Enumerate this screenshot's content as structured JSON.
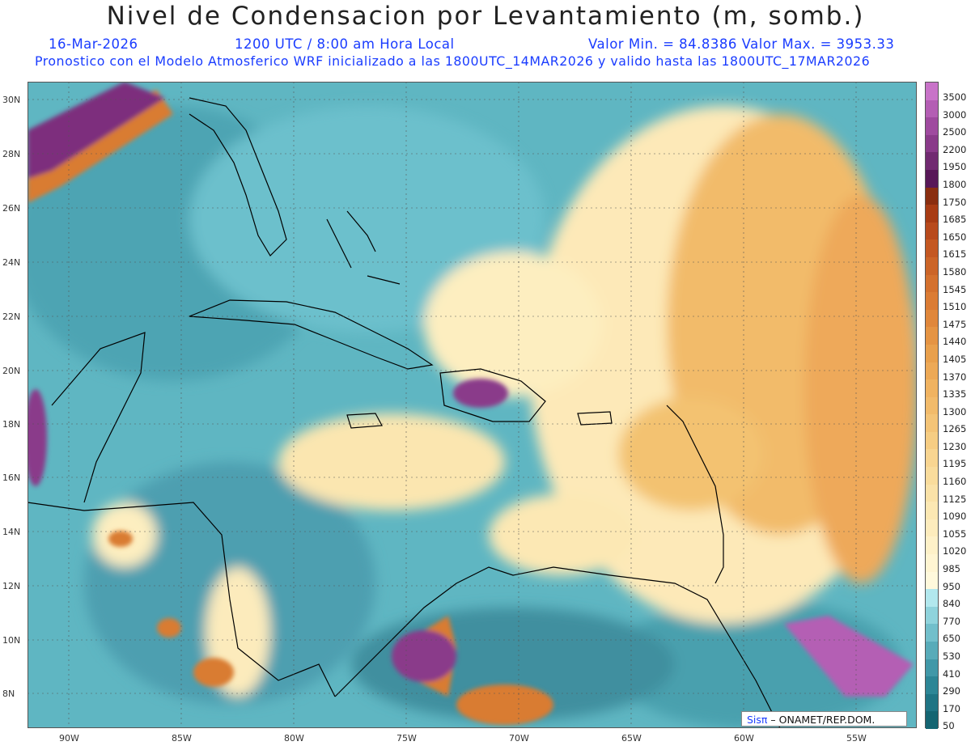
{
  "header": {
    "title": "Nivel de Condensacion por Levantamiento (m, somb.)",
    "date": "16-Mar-2026",
    "time": "1200 UTC / 8:00 am Hora Local",
    "min_max": "Valor Min. = 84.8386  Valor Max. = 3953.33",
    "model_line": "Pronostico con el Modelo Atmosferico WRF inicializado a las 1800UTC_14MAR2026 y valido hasta las  1800UTC_17MAR2026"
  },
  "map": {
    "lat_labels": [
      "30N",
      "28N",
      "26N",
      "24N",
      "22N",
      "20N",
      "18N",
      "16N",
      "14N",
      "12N",
      "10N",
      "8N"
    ],
    "lon_labels": [
      "90W",
      "85W",
      "80W",
      "75W",
      "70W",
      "65W",
      "60W",
      "55W"
    ],
    "regions": {
      "florida": "land-outline",
      "cuba": "land-outline",
      "hispaniola": "land-outline",
      "puerto_rico": "land-outline",
      "central_america": "land-outline",
      "south_america": "land-outline"
    }
  },
  "colorbar": {
    "labels": [
      "3500",
      "3000",
      "2500",
      "2200",
      "1950",
      "1800",
      "1750",
      "1685",
      "1650",
      "1615",
      "1580",
      "1545",
      "1510",
      "1475",
      "1440",
      "1405",
      "1370",
      "1335",
      "1300",
      "1265",
      "1230",
      "1195",
      "1160",
      "1125",
      "1090",
      "1055",
      "1020",
      "985",
      "950",
      "840",
      "770",
      "650",
      "530",
      "410",
      "290",
      "170",
      "50"
    ],
    "colors": [
      "#c873c8",
      "#b45eb4",
      "#9f4a9f",
      "#8a3a8a",
      "#712a71",
      "#581858",
      "#8a2e10",
      "#a83c14",
      "#b84a1c",
      "#c45822",
      "#cc6528",
      "#d4712e",
      "#db7c34",
      "#e0873b",
      "#e59443",
      "#e9a04c",
      "#eda956",
      "#f0b361",
      "#f2bb6b",
      "#f4c477",
      "#f6cd83",
      "#f8d591",
      "#f9dc9c",
      "#fae2a8",
      "#fce8b3",
      "#fdecbd",
      "#fef1c8",
      "#fff5d2",
      "#fff9dc",
      "#b2e8ee",
      "#8fd3dc",
      "#72bfcb",
      "#58abb9",
      "#4198a8",
      "#2d8696",
      "#1f7484",
      "#146572"
    ]
  },
  "credit": {
    "brand": "Sisπ",
    "org": " – ONAMET/REP.DOM."
  }
}
